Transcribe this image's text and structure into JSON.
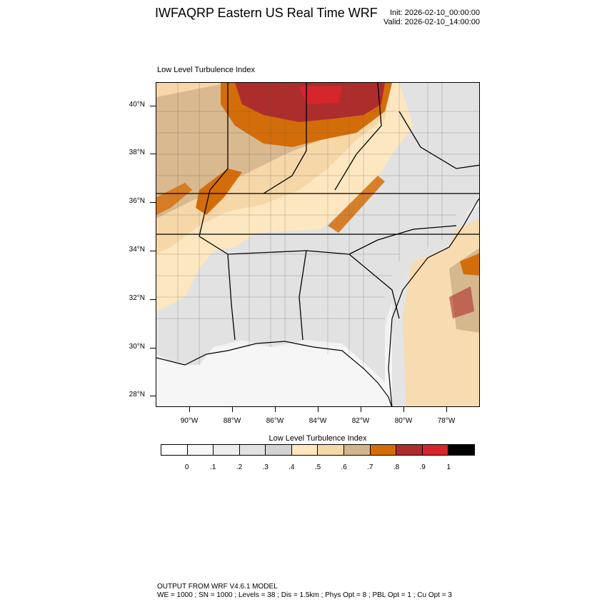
{
  "header": {
    "title": "IWFAQRP Eastern US Real Time WRF",
    "init": "Init: 2026-02-10_00:00:00",
    "valid": "Valid: 2026-02-10_14:00:00"
  },
  "map": {
    "title": "Low Level Turbulence Index",
    "lat_labels": [
      "40°N",
      "38°N",
      "36°N",
      "34°N",
      "32°N",
      "30°N",
      "28°N"
    ],
    "lon_labels": [
      "90°W",
      "88°W",
      "86°W",
      "84°W",
      "82°W",
      "80°W",
      "78°W"
    ]
  },
  "colorbar": {
    "title": "Low Level Turbulence Index",
    "labels": [
      "0",
      ".1",
      ".2",
      ".3",
      ".4",
      ".5",
      ".6",
      ".7",
      ".8",
      ".9",
      "1"
    ],
    "colors": [
      "#ffffff",
      "#f7f7f7",
      "#eeeeee",
      "#e2e2e2",
      "#d2d2d2",
      "#fde7c0",
      "#f6d7a8",
      "#d4b48c",
      "#d36d0a",
      "#ad2d2d",
      "#d6262b",
      "#000000"
    ]
  },
  "footer": {
    "line1": "OUTPUT FROM WRF V4.6.1 MODEL",
    "line2": "WE = 1000 ; SN = 1000 ; Levels = 38 ; Dis = 1.5km ; Phys Opt = 8 ; PBL Opt = 1 ; Cu Opt = 3"
  }
}
